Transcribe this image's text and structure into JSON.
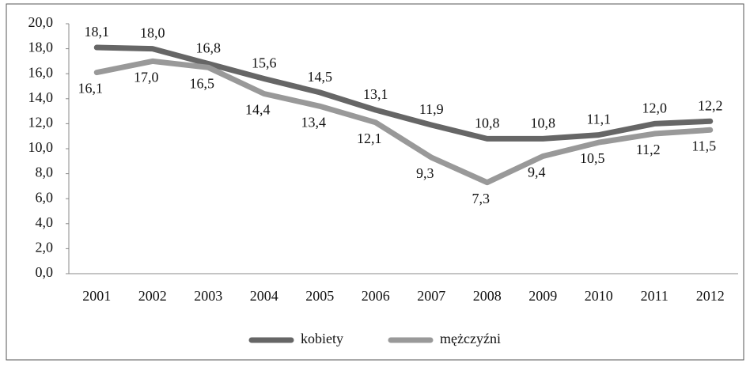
{
  "chart_data": {
    "type": "line",
    "categories": [
      "2001",
      "2002",
      "2003",
      "2004",
      "2005",
      "2006",
      "2007",
      "2008",
      "2009",
      "2010",
      "2011",
      "2012"
    ],
    "series": [
      {
        "name": "kobiety",
        "color": "#666666",
        "values": [
          18.1,
          18.0,
          16.8,
          15.6,
          14.5,
          13.1,
          11.9,
          10.8,
          10.8,
          11.1,
          12.0,
          12.2
        ],
        "value_labels": [
          "18,1",
          "18,0",
          "16,8",
          "15,6",
          "14,5",
          "13,1",
          "11,9",
          "10,8",
          "10,8",
          "11,1",
          "12,0",
          "12,2"
        ]
      },
      {
        "name": "mężczyźni",
        "color": "#999999",
        "values": [
          16.1,
          17.0,
          16.5,
          14.4,
          13.4,
          12.1,
          9.3,
          7.3,
          9.4,
          10.5,
          11.2,
          11.5
        ],
        "value_labels": [
          "16,1",
          "17,0",
          "16,5",
          "14,4",
          "13,4",
          "12,1",
          "9,3",
          "7,3",
          "9,4",
          "10,5",
          "11,2",
          "11,5"
        ]
      }
    ],
    "ylim": [
      0,
      20
    ],
    "yticks": [
      {
        "value": 0,
        "label": "0,0"
      },
      {
        "value": 2,
        "label": "2,0"
      },
      {
        "value": 4,
        "label": "4,0"
      },
      {
        "value": 6,
        "label": "6,0"
      },
      {
        "value": 8,
        "label": "8,0"
      },
      {
        "value": 10,
        "label": "10,0"
      },
      {
        "value": 12,
        "label": "12,0"
      },
      {
        "value": 14,
        "label": "14,0"
      },
      {
        "value": 16,
        "label": "16,0"
      },
      {
        "value": 18,
        "label": "18,0"
      },
      {
        "value": 20,
        "label": "20,0"
      }
    ],
    "grid": false,
    "legend": "bottom"
  }
}
